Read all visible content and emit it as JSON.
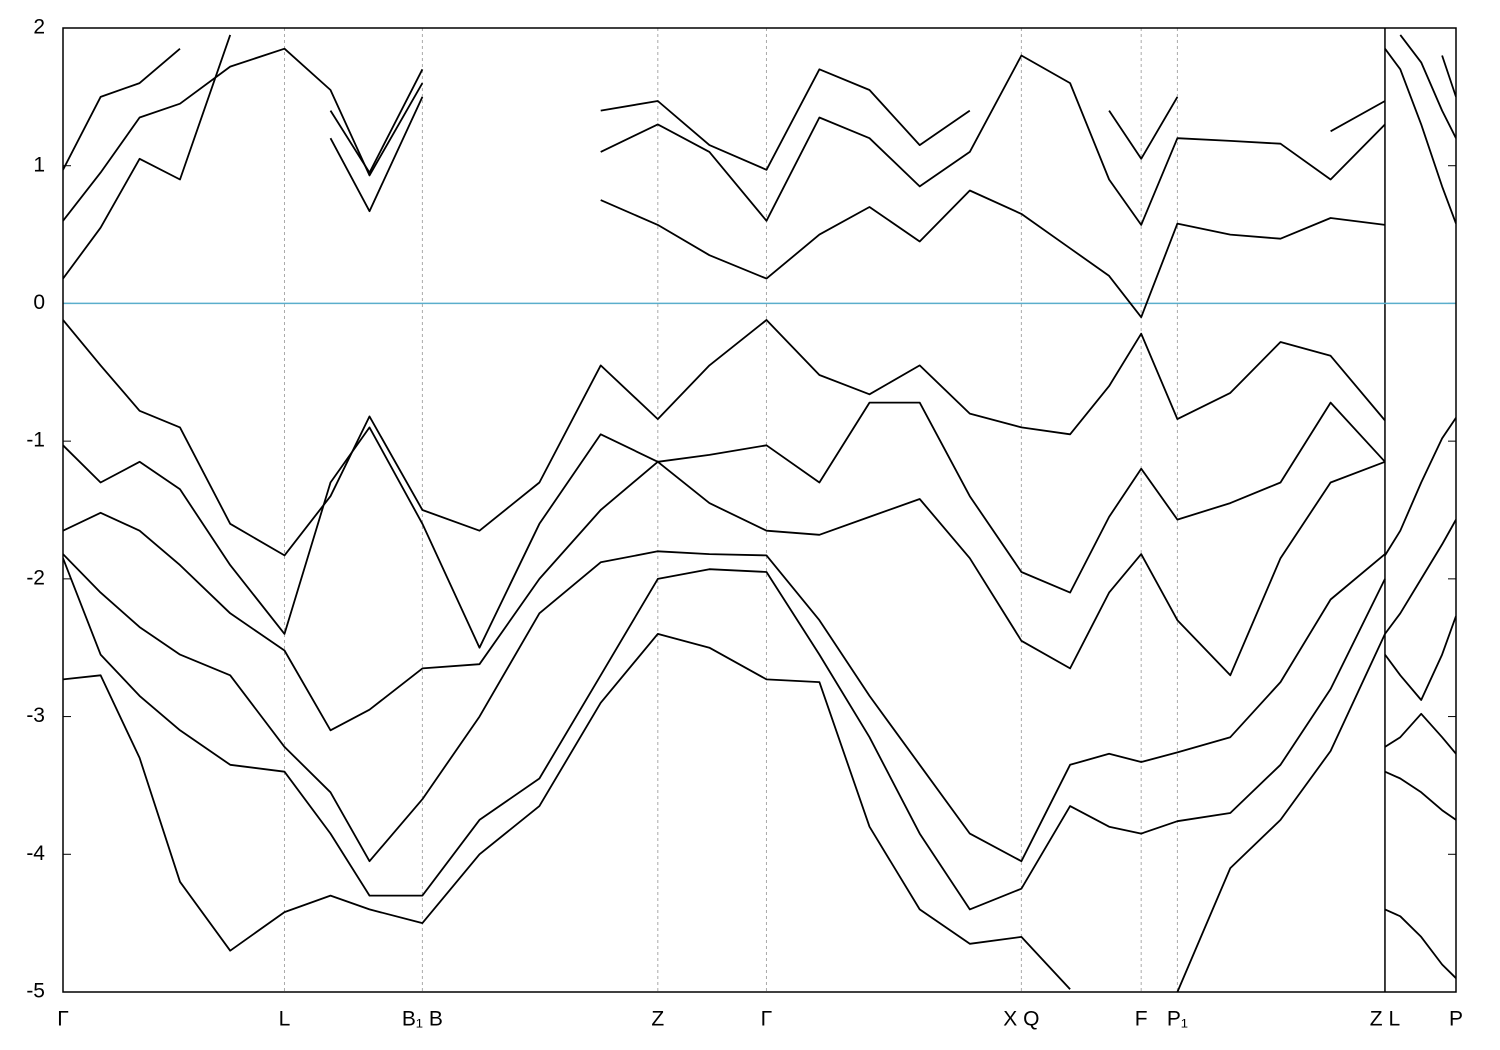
{
  "chart_data": {
    "type": "line",
    "color": "#000000",
    "xlim": [
      0,
      1.0
    ],
    "ylim": [
      -5,
      2
    ],
    "yticks": [
      -5,
      -4,
      -3,
      -2,
      -1,
      0,
      1,
      2
    ],
    "xticks": [
      {
        "value": 0,
        "label": "Γ"
      },
      {
        "value": 0.159,
        "label": "L"
      },
      {
        "value": 0.258,
        "label": "B₁ B"
      },
      {
        "value": 0.427,
        "label": "Z"
      },
      {
        "value": 0.505,
        "label": "Γ"
      },
      {
        "value": 0.688,
        "label": "X Q"
      },
      {
        "value": 0.774,
        "label": "F"
      },
      {
        "value": 0.8,
        "label": "P₁"
      },
      {
        "value": 0.949,
        "label": "Z L"
      },
      {
        "value": 1.0,
        "label": "P"
      }
    ],
    "xgrid": true,
    "panel_break": 0.949,
    "reference_line": 0,
    "reference_color": "#5aaecc",
    "x": [
      0,
      0.027,
      0.055,
      0.084,
      0.12,
      0.159,
      0.192,
      0.22,
      0.258,
      0.299,
      0.342,
      0.386,
      0.427,
      0.464,
      0.505,
      0.543,
      0.579,
      0.615,
      0.651,
      0.688,
      0.723,
      0.751,
      0.774,
      0.8,
      0.838,
      0.874,
      0.91,
      0.949
    ],
    "series": [
      {
        "values": [
          -0.12,
          -0.45,
          -0.78,
          -0.9,
          -1.6,
          -1.83,
          -1.4,
          -0.82,
          -1.5,
          -1.65,
          -1.3,
          -0.45,
          -0.84,
          -0.45,
          -0.12,
          -0.52,
          -0.66,
          -0.45,
          -0.8,
          -0.9,
          -0.95,
          -0.6,
          -0.22,
          -0.84,
          -0.65,
          -0.28,
          -0.38,
          -0.85
        ]
      },
      {
        "values": [
          -1.03,
          -1.3,
          -1.15,
          -1.35,
          -1.9,
          -2.4,
          -1.3,
          -0.9,
          -1.6,
          -2.5,
          -1.6,
          -0.95,
          -1.15,
          -1.1,
          -1.03,
          -1.3,
          -0.72,
          -0.72,
          -1.4,
          -1.95,
          -2.1,
          -1.55,
          -1.2,
          -1.57,
          -1.45,
          -1.3,
          -0.72,
          -1.15
        ]
      },
      {
        "values": [
          -1.65,
          -1.52,
          -1.65,
          -1.9,
          -2.25,
          -2.52,
          -3.1,
          -2.95,
          -2.65,
          -2.62,
          -2.0,
          -1.5,
          -1.15,
          -1.45,
          -1.65,
          -1.68,
          -1.55,
          -1.42,
          -1.85,
          -2.45,
          -2.65,
          -2.1,
          -1.82,
          -2.3,
          -2.7,
          -1.85,
          -1.3,
          -1.15
        ]
      },
      {
        "values": [
          -1.82,
          -2.1,
          -2.35,
          -2.55,
          -2.7,
          -3.22,
          -3.55,
          -4.05,
          -3.6,
          -3.0,
          -2.25,
          -1.88,
          -1.8,
          -1.82,
          -1.83,
          -2.3,
          -2.85,
          -3.35,
          -3.85,
          -4.05,
          -3.35,
          -3.27,
          -3.33,
          -3.26,
          -3.15,
          -2.75,
          -2.15,
          -1.82
        ]
      },
      {
        "values": [
          -1.85,
          -2.55,
          -2.85,
          -3.1,
          -3.35,
          -3.4,
          -3.85,
          -4.3,
          -4.3,
          -3.75,
          -3.45,
          -2.7,
          -2.0,
          -1.93,
          -1.95,
          -2.55,
          -3.15,
          -3.85,
          -4.4,
          -4.25,
          -3.65,
          -3.8,
          -3.85,
          -3.76,
          -3.7,
          -3.35,
          -2.8,
          -2.0
        ]
      },
      {
        "values": [
          -2.73,
          -2.7,
          -3.3,
          -4.2,
          -4.7,
          -4.42,
          -4.3,
          -4.4,
          -4.5,
          -4.0,
          -3.65,
          -2.9,
          -2.4,
          -2.5,
          -2.73,
          -2.75,
          -3.8,
          -4.4,
          -4.65,
          -4.6,
          -4.98,
          null,
          null,
          -5.0,
          -4.1,
          -3.75,
          -3.25,
          -2.4
        ]
      },
      {
        "values": [
          0.18,
          0.55,
          1.05,
          0.9,
          1.95,
          null,
          1.2,
          0.67,
          1.5,
          null,
          null,
          0.75,
          0.57,
          0.35,
          0.18,
          0.5,
          0.7,
          0.45,
          0.82,
          0.65,
          0.4,
          0.2,
          -0.1,
          0.58,
          0.5,
          0.47,
          0.62,
          0.57
        ]
      },
      {
        "values": [
          0.6,
          0.95,
          1.35,
          1.45,
          1.72,
          1.85,
          1.55,
          0.93,
          1.6,
          null,
          null,
          1.1,
          1.3,
          1.1,
          0.6,
          1.35,
          1.2,
          0.85,
          1.1,
          1.8,
          1.6,
          0.9,
          0.57,
          1.2,
          1.18,
          1.16,
          0.9,
          1.3
        ]
      },
      {
        "values": [
          0.97,
          1.5,
          1.6,
          1.85,
          null,
          null,
          1.4,
          0.95,
          1.7,
          null,
          null,
          1.4,
          1.47,
          1.15,
          0.97,
          1.7,
          1.55,
          1.15,
          1.4,
          null,
          null,
          1.4,
          1.05,
          1.5,
          null,
          null,
          1.25,
          1.47
        ]
      },
      {
        "x": [
          0.949,
          0.96,
          0.975,
          0.99,
          1.0
        ],
        "values": [
          1.85,
          1.7,
          1.3,
          0.85,
          0.58
        ]
      },
      {
        "x": [
          0.96,
          0.975,
          0.99,
          1.0
        ],
        "values": [
          1.95,
          1.75,
          1.4,
          1.2
        ]
      },
      {
        "x": [
          0.99,
          1.0
        ],
        "values": [
          1.8,
          1.5
        ]
      },
      {
        "x": [
          0.949,
          0.96,
          0.975,
          0.99,
          1.0
        ],
        "values": [
          -1.83,
          -1.65,
          -1.3,
          -0.98,
          -0.83
        ]
      },
      {
        "x": [
          0.949,
          0.96,
          0.975,
          0.99,
          1.0
        ],
        "values": [
          -2.4,
          -2.25,
          -2.0,
          -1.75,
          -1.57
        ]
      },
      {
        "x": [
          0.949,
          0.96,
          0.975,
          0.99,
          1.0
        ],
        "values": [
          -2.55,
          -2.7,
          -2.88,
          -2.55,
          -2.27
        ]
      },
      {
        "x": [
          0.949,
          0.96,
          0.975,
          0.99,
          1.0
        ],
        "values": [
          -3.22,
          -3.15,
          -2.98,
          -3.15,
          -3.27
        ]
      },
      {
        "x": [
          0.949,
          0.96,
          0.975,
          0.99,
          1.0
        ],
        "values": [
          -3.4,
          -3.45,
          -3.55,
          -3.68,
          -3.75
        ]
      },
      {
        "x": [
          0.949,
          0.96,
          0.975,
          0.99,
          1.0
        ],
        "values": [
          -4.4,
          -4.45,
          -4.6,
          -4.8,
          -4.9
        ]
      }
    ]
  }
}
